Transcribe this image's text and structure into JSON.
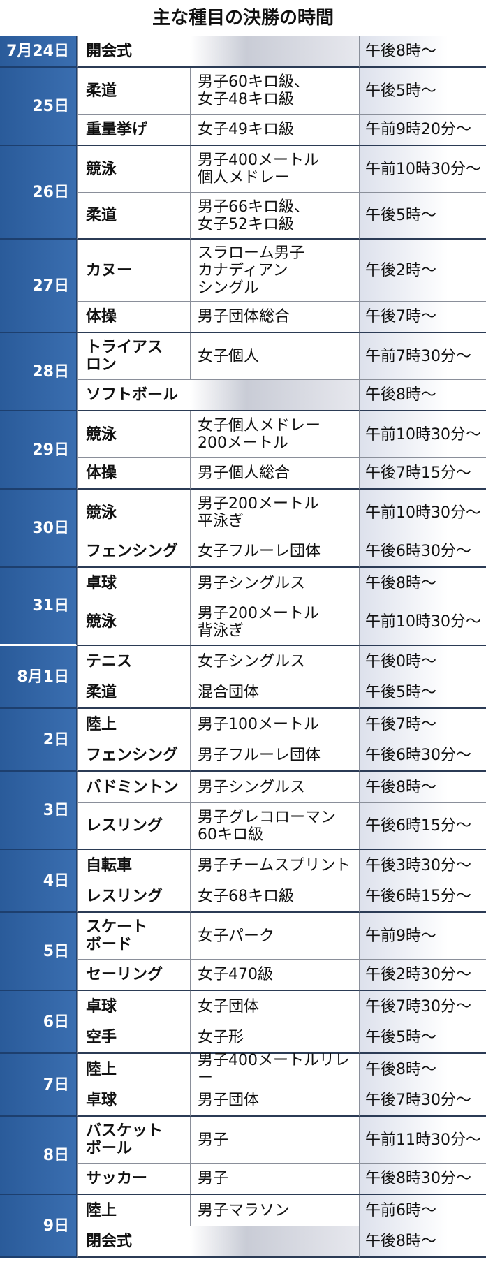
{
  "title": "主な種目の決勝の時間",
  "groups": [
    {
      "date": "7月24日",
      "rows": [
        {
          "event": [
            "開会式"
          ],
          "time": "午後8時～"
        }
      ]
    },
    {
      "date": "25日",
      "rows": [
        {
          "event": [
            "柔道"
          ],
          "detail": [
            "男子60キロ級、",
            "女子48キロ級"
          ],
          "time": "午後5時～"
        },
        {
          "event": [
            "重量挙げ"
          ],
          "detail": [
            "女子49キロ級"
          ],
          "time": "午前9時20分～"
        }
      ]
    },
    {
      "date": "26日",
      "rows": [
        {
          "event": [
            "競泳"
          ],
          "detail": [
            "男子400メートル",
            "個人メドレー"
          ],
          "time": "午前10時30分～"
        },
        {
          "event": [
            "柔道"
          ],
          "detail": [
            "男子66キロ級、",
            "女子52キロ級"
          ],
          "time": "午後5時～"
        }
      ]
    },
    {
      "date": "27日",
      "rows": [
        {
          "event": [
            "カヌー"
          ],
          "detail": [
            "スラローム男子",
            "カナディアン",
            "シングル"
          ],
          "time": "午後2時～"
        },
        {
          "event": [
            "体操"
          ],
          "detail": [
            "男子団体総合"
          ],
          "time": "午後7時～"
        }
      ]
    },
    {
      "date": "28日",
      "rows": [
        {
          "event": [
            "トライアス",
            "ロン"
          ],
          "detail": [
            "女子個人"
          ],
          "time": "午前7時30分～"
        },
        {
          "event": [
            "ソフトボール"
          ],
          "time": "午後8時～"
        }
      ]
    },
    {
      "date": "29日",
      "rows": [
        {
          "event": [
            "競泳"
          ],
          "detail": [
            "女子個人メドレー",
            "200メートル"
          ],
          "time": "午前10時30分～"
        },
        {
          "event": [
            "体操"
          ],
          "detail": [
            "男子個人総合"
          ],
          "time": "午後7時15分～"
        }
      ]
    },
    {
      "date": "30日",
      "rows": [
        {
          "event": [
            "競泳"
          ],
          "detail": [
            "男子200メートル",
            "平泳ぎ"
          ],
          "time": "午前10時30分～"
        },
        {
          "event": [
            "フェンシング"
          ],
          "detail": [
            "女子フルーレ団体"
          ],
          "time": "午後6時30分～"
        }
      ]
    },
    {
      "date": "31日",
      "rows": [
        {
          "event": [
            "卓球"
          ],
          "detail": [
            "男子シングルス"
          ],
          "time": "午後8時～"
        },
        {
          "event": [
            "競泳"
          ],
          "detail": [
            "男子200メートル",
            "背泳ぎ"
          ],
          "time": "午前10時30分～"
        }
      ]
    },
    {
      "date": "8月1日",
      "rows": [
        {
          "event": [
            "テニス"
          ],
          "detail": [
            "女子シングルス"
          ],
          "time": "午後0時～"
        },
        {
          "event": [
            "柔道"
          ],
          "detail": [
            "混合団体"
          ],
          "time": "午後5時～"
        }
      ]
    },
    {
      "date": "2日",
      "rows": [
        {
          "event": [
            "陸上"
          ],
          "detail": [
            "男子100メートル"
          ],
          "time": "午後7時～"
        },
        {
          "event": [
            "フェンシング"
          ],
          "detail": [
            "男子フルーレ団体"
          ],
          "time": "午後6時30分～"
        }
      ]
    },
    {
      "date": "3日",
      "rows": [
        {
          "event": [
            "バドミントン"
          ],
          "detail": [
            "男子シングルス"
          ],
          "time": "午後8時～"
        },
        {
          "event": [
            "レスリング"
          ],
          "detail": [
            "男子グレコローマン",
            "60キロ級"
          ],
          "time": "午後6時15分～"
        }
      ]
    },
    {
      "date": "4日",
      "rows": [
        {
          "event": [
            "自転車"
          ],
          "detail": [
            "男子チームスプリント"
          ],
          "time": "午後3時30分～"
        },
        {
          "event": [
            "レスリング"
          ],
          "detail": [
            "女子68キロ級"
          ],
          "time": "午後6時15分～"
        }
      ]
    },
    {
      "date": "5日",
      "rows": [
        {
          "event": [
            "スケート",
            "ボード"
          ],
          "detail": [
            "女子パーク"
          ],
          "time": "午前9時～"
        },
        {
          "event": [
            "セーリング"
          ],
          "detail": [
            "女子470級"
          ],
          "time": "午後2時30分～"
        }
      ]
    },
    {
      "date": "6日",
      "rows": [
        {
          "event": [
            "卓球"
          ],
          "detail": [
            "女子団体"
          ],
          "time": "午後7時30分～"
        },
        {
          "event": [
            "空手"
          ],
          "detail": [
            "女子形"
          ],
          "time": "午後5時～"
        }
      ]
    },
    {
      "date": "7日",
      "rows": [
        {
          "event": [
            "陸上"
          ],
          "detail": [
            "男子400メートルリレー"
          ],
          "time": "午後8時～"
        },
        {
          "event": [
            "卓球"
          ],
          "detail": [
            "男子団体"
          ],
          "time": "午後7時30分～"
        }
      ]
    },
    {
      "date": "8日",
      "rows": [
        {
          "event": [
            "バスケット",
            "ボール"
          ],
          "detail": [
            "男子"
          ],
          "time": "午前11時30分～"
        },
        {
          "event": [
            "サッカー"
          ],
          "detail": [
            "男子"
          ],
          "time": "午後8時30分～"
        }
      ]
    },
    {
      "date": "9日",
      "rows": [
        {
          "event": [
            "陸上"
          ],
          "detail": [
            "男子マラソン"
          ],
          "time": "午前6時～"
        },
        {
          "event": [
            "閉会式"
          ],
          "time": "午後8時～"
        }
      ]
    }
  ]
}
